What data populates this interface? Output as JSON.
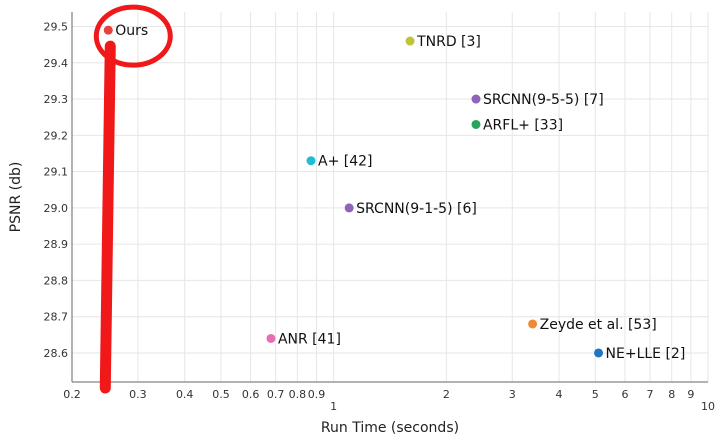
{
  "chart_data": {
    "type": "scatter",
    "xlabel": "Run Time (seconds)",
    "ylabel": "PSNR (db)",
    "xscale": "log",
    "xlim": [
      0.2,
      10
    ],
    "ylim": [
      28.52,
      29.54
    ],
    "grid": true,
    "x_ticks": [
      0.2,
      0.3,
      0.4,
      0.5,
      0.6,
      0.7,
      0.8,
      0.9,
      1,
      2,
      3,
      4,
      5,
      6,
      7,
      8,
      9,
      10
    ],
    "x_tick_labels": [
      "0.2",
      "0.3",
      "0.4",
      "0.5",
      "0.6",
      "0.7",
      "0.8",
      "0.9",
      "1",
      "2",
      "3",
      "4",
      "5",
      "6",
      "7",
      "8",
      "9",
      "10"
    ],
    "y_ticks": [
      28.6,
      28.7,
      28.8,
      28.9,
      29.0,
      29.1,
      29.2,
      29.3,
      29.4,
      29.5
    ],
    "y_tick_labels": [
      "28.6",
      "28.7",
      "28.8",
      "28.9",
      "29.0",
      "29.1",
      "29.2",
      "29.3",
      "29.4",
      "29.5"
    ],
    "points": [
      {
        "label": "Ours",
        "x": 0.25,
        "y": 29.49,
        "color": "#e8413c"
      },
      {
        "label": "TNRD [3]",
        "x": 1.6,
        "y": 29.46,
        "color": "#c2c23a"
      },
      {
        "label": "SRCNN(9-5-5) [7]",
        "x": 2.4,
        "y": 29.3,
        "color": "#8e63b8"
      },
      {
        "label": "ARFL+ [33]",
        "x": 2.4,
        "y": 29.23,
        "color": "#27a35a"
      },
      {
        "label": "A+ [42]",
        "x": 0.87,
        "y": 29.13,
        "color": "#20bcd2"
      },
      {
        "label": "SRCNN(9-1-5) [6]",
        "x": 1.1,
        "y": 29.0,
        "color": "#8e63b8"
      },
      {
        "label": "Zeyde et al. [53]",
        "x": 3.4,
        "y": 28.68,
        "color": "#f08a32"
      },
      {
        "label": "ANR [41]",
        "x": 0.68,
        "y": 28.64,
        "color": "#e46fb3"
      },
      {
        "label": "NE+LLE [2]",
        "x": 5.1,
        "y": 28.6,
        "color": "#1f74c4"
      }
    ],
    "annotation": {
      "target": "Ours",
      "color": "#f01818"
    }
  }
}
